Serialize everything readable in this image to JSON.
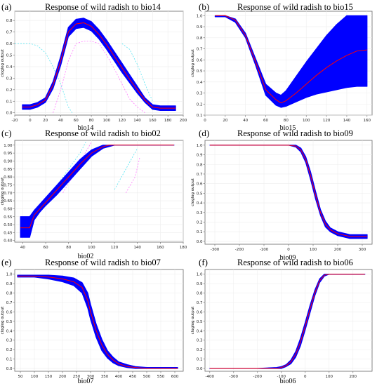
{
  "colors": {
    "band": "#0000ff",
    "mean": "#ff0000",
    "axis": "#666666",
    "grid": "#ededed",
    "ghost": "#40e0f0",
    "ghostMagenta": "#ff60ff"
  },
  "chart_data": [
    {
      "type": "area",
      "label": "(a)",
      "title": "Response of wild radish to bio14",
      "xlabel": "bio14",
      "ylabel": "cloglog output",
      "xlim": [
        -20,
        200
      ],
      "ylim": [
        -0.02,
        0.88
      ],
      "xticks": [
        -20,
        0,
        20,
        40,
        60,
        80,
        100,
        120,
        140,
        160,
        180,
        200
      ],
      "yticks": [
        0.0,
        0.1,
        0.2,
        0.3,
        0.4,
        0.5,
        0.6,
        0.7,
        0.8
      ],
      "series": [
        {
          "role": "mean",
          "x": [
            -10,
            0,
            10,
            20,
            30,
            40,
            50,
            60,
            70,
            80,
            90,
            100,
            110,
            120,
            130,
            140,
            150,
            160,
            170,
            180,
            190
          ],
          "y": [
            0.05,
            0.05,
            0.07,
            0.11,
            0.24,
            0.45,
            0.7,
            0.77,
            0.78,
            0.75,
            0.68,
            0.59,
            0.49,
            0.39,
            0.29,
            0.2,
            0.11,
            0.05,
            0.04,
            0.04,
            0.04
          ]
        },
        {
          "role": "band_low",
          "y": [
            0.03,
            0.03,
            0.05,
            0.09,
            0.21,
            0.41,
            0.66,
            0.73,
            0.74,
            0.71,
            0.64,
            0.55,
            0.45,
            0.35,
            0.26,
            0.17,
            0.09,
            0.03,
            0.02,
            0.02,
            0.02
          ]
        },
        {
          "role": "band_high",
          "y": [
            0.07,
            0.07,
            0.09,
            0.13,
            0.27,
            0.49,
            0.74,
            0.81,
            0.82,
            0.79,
            0.72,
            0.63,
            0.53,
            0.43,
            0.33,
            0.23,
            0.13,
            0.07,
            0.06,
            0.06,
            0.06
          ]
        }
      ]
    },
    {
      "type": "area",
      "label": "(b)",
      "title": "Response of wild radish to bio15",
      "xlabel": "bio15",
      "ylabel": "cloglog output",
      "xlim": [
        0,
        165
      ],
      "ylim": [
        0.1,
        1.04
      ],
      "xticks": [
        0,
        20,
        40,
        60,
        80,
        100,
        120,
        140,
        160
      ],
      "yticks": [
        0.1,
        0.2,
        0.3,
        0.4,
        0.5,
        0.6,
        0.7,
        0.8,
        0.9,
        1.0
      ],
      "series": [
        {
          "role": "mean",
          "x": [
            10,
            20,
            30,
            40,
            50,
            60,
            70,
            75,
            80,
            90,
            100,
            110,
            120,
            130,
            140,
            150,
            160
          ],
          "y": [
            1.0,
            1.0,
            0.96,
            0.82,
            0.58,
            0.33,
            0.24,
            0.21,
            0.23,
            0.3,
            0.38,
            0.46,
            0.53,
            0.59,
            0.64,
            0.68,
            0.69
          ]
        },
        {
          "role": "band_low",
          "y": [
            0.99,
            0.99,
            0.94,
            0.8,
            0.55,
            0.28,
            0.19,
            0.17,
            0.18,
            0.22,
            0.26,
            0.29,
            0.31,
            0.33,
            0.35,
            0.36,
            0.36
          ]
        },
        {
          "role": "band_high",
          "y": [
            1.0,
            1.0,
            0.97,
            0.84,
            0.61,
            0.38,
            0.3,
            0.28,
            0.32,
            0.45,
            0.58,
            0.7,
            0.82,
            0.92,
            1.0,
            1.0,
            1.0
          ]
        }
      ]
    },
    {
      "type": "area",
      "label": "(c)",
      "title": "Response of wild radish to bio02",
      "xlabel": "bio02",
      "ylabel": "cloglog output",
      "xlim": [
        33,
        180
      ],
      "ylim": [
        0.39,
        1.03
      ],
      "xticks": [
        40,
        60,
        80,
        100,
        120,
        140,
        160,
        180
      ],
      "yticks": [
        0.4,
        0.45,
        0.5,
        0.55,
        0.6,
        0.65,
        0.7,
        0.75,
        0.8,
        0.85,
        0.9,
        0.95,
        1.0
      ],
      "series": [
        {
          "role": "mean",
          "x": [
            38,
            46,
            50,
            55,
            60,
            70,
            80,
            90,
            100,
            110,
            115,
            120,
            130,
            140,
            150,
            160,
            172
          ],
          "y": [
            0.48,
            0.48,
            0.56,
            0.6,
            0.64,
            0.72,
            0.8,
            0.88,
            0.95,
            0.99,
            1.0,
            1.0,
            1.0,
            1.0,
            1.0,
            1.0,
            1.0
          ]
        },
        {
          "role": "band_low",
          "y": [
            0.42,
            0.42,
            0.53,
            0.58,
            0.62,
            0.69,
            0.77,
            0.85,
            0.93,
            0.98,
            0.99,
            1.0,
            1.0,
            1.0,
            1.0,
            1.0,
            1.0
          ]
        },
        {
          "role": "band_high",
          "y": [
            0.55,
            0.55,
            0.59,
            0.63,
            0.67,
            0.75,
            0.83,
            0.91,
            0.97,
            1.0,
            1.0,
            1.0,
            1.0,
            1.0,
            1.0,
            1.0,
            1.0
          ]
        }
      ]
    },
    {
      "type": "area",
      "label": "(d)",
      "title": "Response of wild radish to bio09",
      "xlabel": "bio09",
      "ylabel": "cloglog output",
      "xlim": [
        -340,
        340
      ],
      "ylim": [
        -0.03,
        1.05
      ],
      "xticks": [
        -300,
        -200,
        -100,
        0,
        100,
        200,
        300
      ],
      "yticks": [
        0.0,
        0.1,
        0.2,
        0.3,
        0.4,
        0.5,
        0.6,
        0.7,
        0.8,
        0.9,
        1.0
      ],
      "series": [
        {
          "role": "mean",
          "x": [
            -320,
            -200,
            -100,
            0,
            30,
            50,
            70,
            90,
            110,
            130,
            150,
            170,
            200,
            250,
            320
          ],
          "y": [
            1.0,
            1.0,
            1.0,
            1.0,
            0.99,
            0.95,
            0.85,
            0.68,
            0.48,
            0.3,
            0.18,
            0.12,
            0.08,
            0.05,
            0.05
          ]
        },
        {
          "role": "band_low",
          "y": [
            1.0,
            1.0,
            1.0,
            1.0,
            0.98,
            0.93,
            0.82,
            0.64,
            0.44,
            0.27,
            0.15,
            0.1,
            0.06,
            0.03,
            0.03
          ]
        },
        {
          "role": "band_high",
          "y": [
            1.0,
            1.0,
            1.0,
            1.0,
            1.0,
            0.97,
            0.88,
            0.72,
            0.52,
            0.33,
            0.21,
            0.14,
            0.1,
            0.07,
            0.07
          ]
        }
      ]
    },
    {
      "type": "area",
      "label": "(e)",
      "title": "Response of wild radish to bio07",
      "xlabel": "bio07",
      "ylabel": "cloglog output",
      "xlim": [
        30,
        630
      ],
      "ylim": [
        -0.03,
        1.05
      ],
      "xticks": [
        50,
        100,
        150,
        200,
        250,
        300,
        350,
        400,
        450,
        500,
        550,
        600
      ],
      "yticks": [
        0.0,
        0.1,
        0.2,
        0.3,
        0.4,
        0.5,
        0.6,
        0.7,
        0.8,
        0.9,
        1.0
      ],
      "series": [
        {
          "role": "mean",
          "x": [
            40,
            100,
            150,
            200,
            240,
            270,
            290,
            300,
            320,
            340,
            360,
            380,
            400,
            430,
            460,
            500,
            550,
            610
          ],
          "y": [
            0.98,
            0.98,
            0.97,
            0.95,
            0.92,
            0.86,
            0.72,
            0.6,
            0.4,
            0.25,
            0.15,
            0.09,
            0.05,
            0.02,
            0.01,
            0.0,
            0.0,
            0.0
          ]
        },
        {
          "role": "band_low",
          "y": [
            0.97,
            0.97,
            0.95,
            0.92,
            0.88,
            0.8,
            0.64,
            0.52,
            0.33,
            0.19,
            0.11,
            0.06,
            0.03,
            0.01,
            0.0,
            0.0,
            0.0,
            0.0
          ]
        },
        {
          "role": "band_high",
          "y": [
            0.99,
            0.99,
            0.99,
            0.98,
            0.96,
            0.91,
            0.8,
            0.68,
            0.47,
            0.31,
            0.19,
            0.12,
            0.07,
            0.04,
            0.02,
            0.01,
            0.01,
            0.01
          ]
        }
      ]
    },
    {
      "type": "area",
      "label": "(f)",
      "title": "Response of wild radish to bio06",
      "xlabel": "bio06",
      "ylabel": "cloglog output",
      "xlim": [
        -420,
        280
      ],
      "ylim": [
        -0.03,
        1.05
      ],
      "xticks": [
        -400,
        -300,
        -200,
        -100,
        0,
        100,
        200
      ],
      "yticks": [
        0.0,
        0.1,
        0.2,
        0.3,
        0.4,
        0.5,
        0.6,
        0.7,
        0.8,
        0.9,
        1.0
      ],
      "series": [
        {
          "role": "mean",
          "x": [
            -400,
            -200,
            -120,
            -100,
            -80,
            -60,
            -40,
            -20,
            0,
            20,
            40,
            60,
            80,
            100,
            150,
            250
          ],
          "y": [
            0.0,
            0.0,
            0.0,
            0.01,
            0.03,
            0.07,
            0.15,
            0.28,
            0.45,
            0.63,
            0.8,
            0.93,
            0.99,
            1.0,
            1.0,
            1.0
          ]
        },
        {
          "role": "band_low",
          "y": [
            0.0,
            0.0,
            0.0,
            0.0,
            0.02,
            0.05,
            0.12,
            0.24,
            0.41,
            0.59,
            0.77,
            0.91,
            0.98,
            1.0,
            1.0,
            1.0
          ]
        },
        {
          "role": "band_high",
          "y": [
            0.0,
            0.0,
            0.01,
            0.02,
            0.04,
            0.09,
            0.18,
            0.32,
            0.49,
            0.67,
            0.83,
            0.95,
            1.0,
            1.0,
            1.0,
            1.0
          ]
        }
      ]
    }
  ]
}
